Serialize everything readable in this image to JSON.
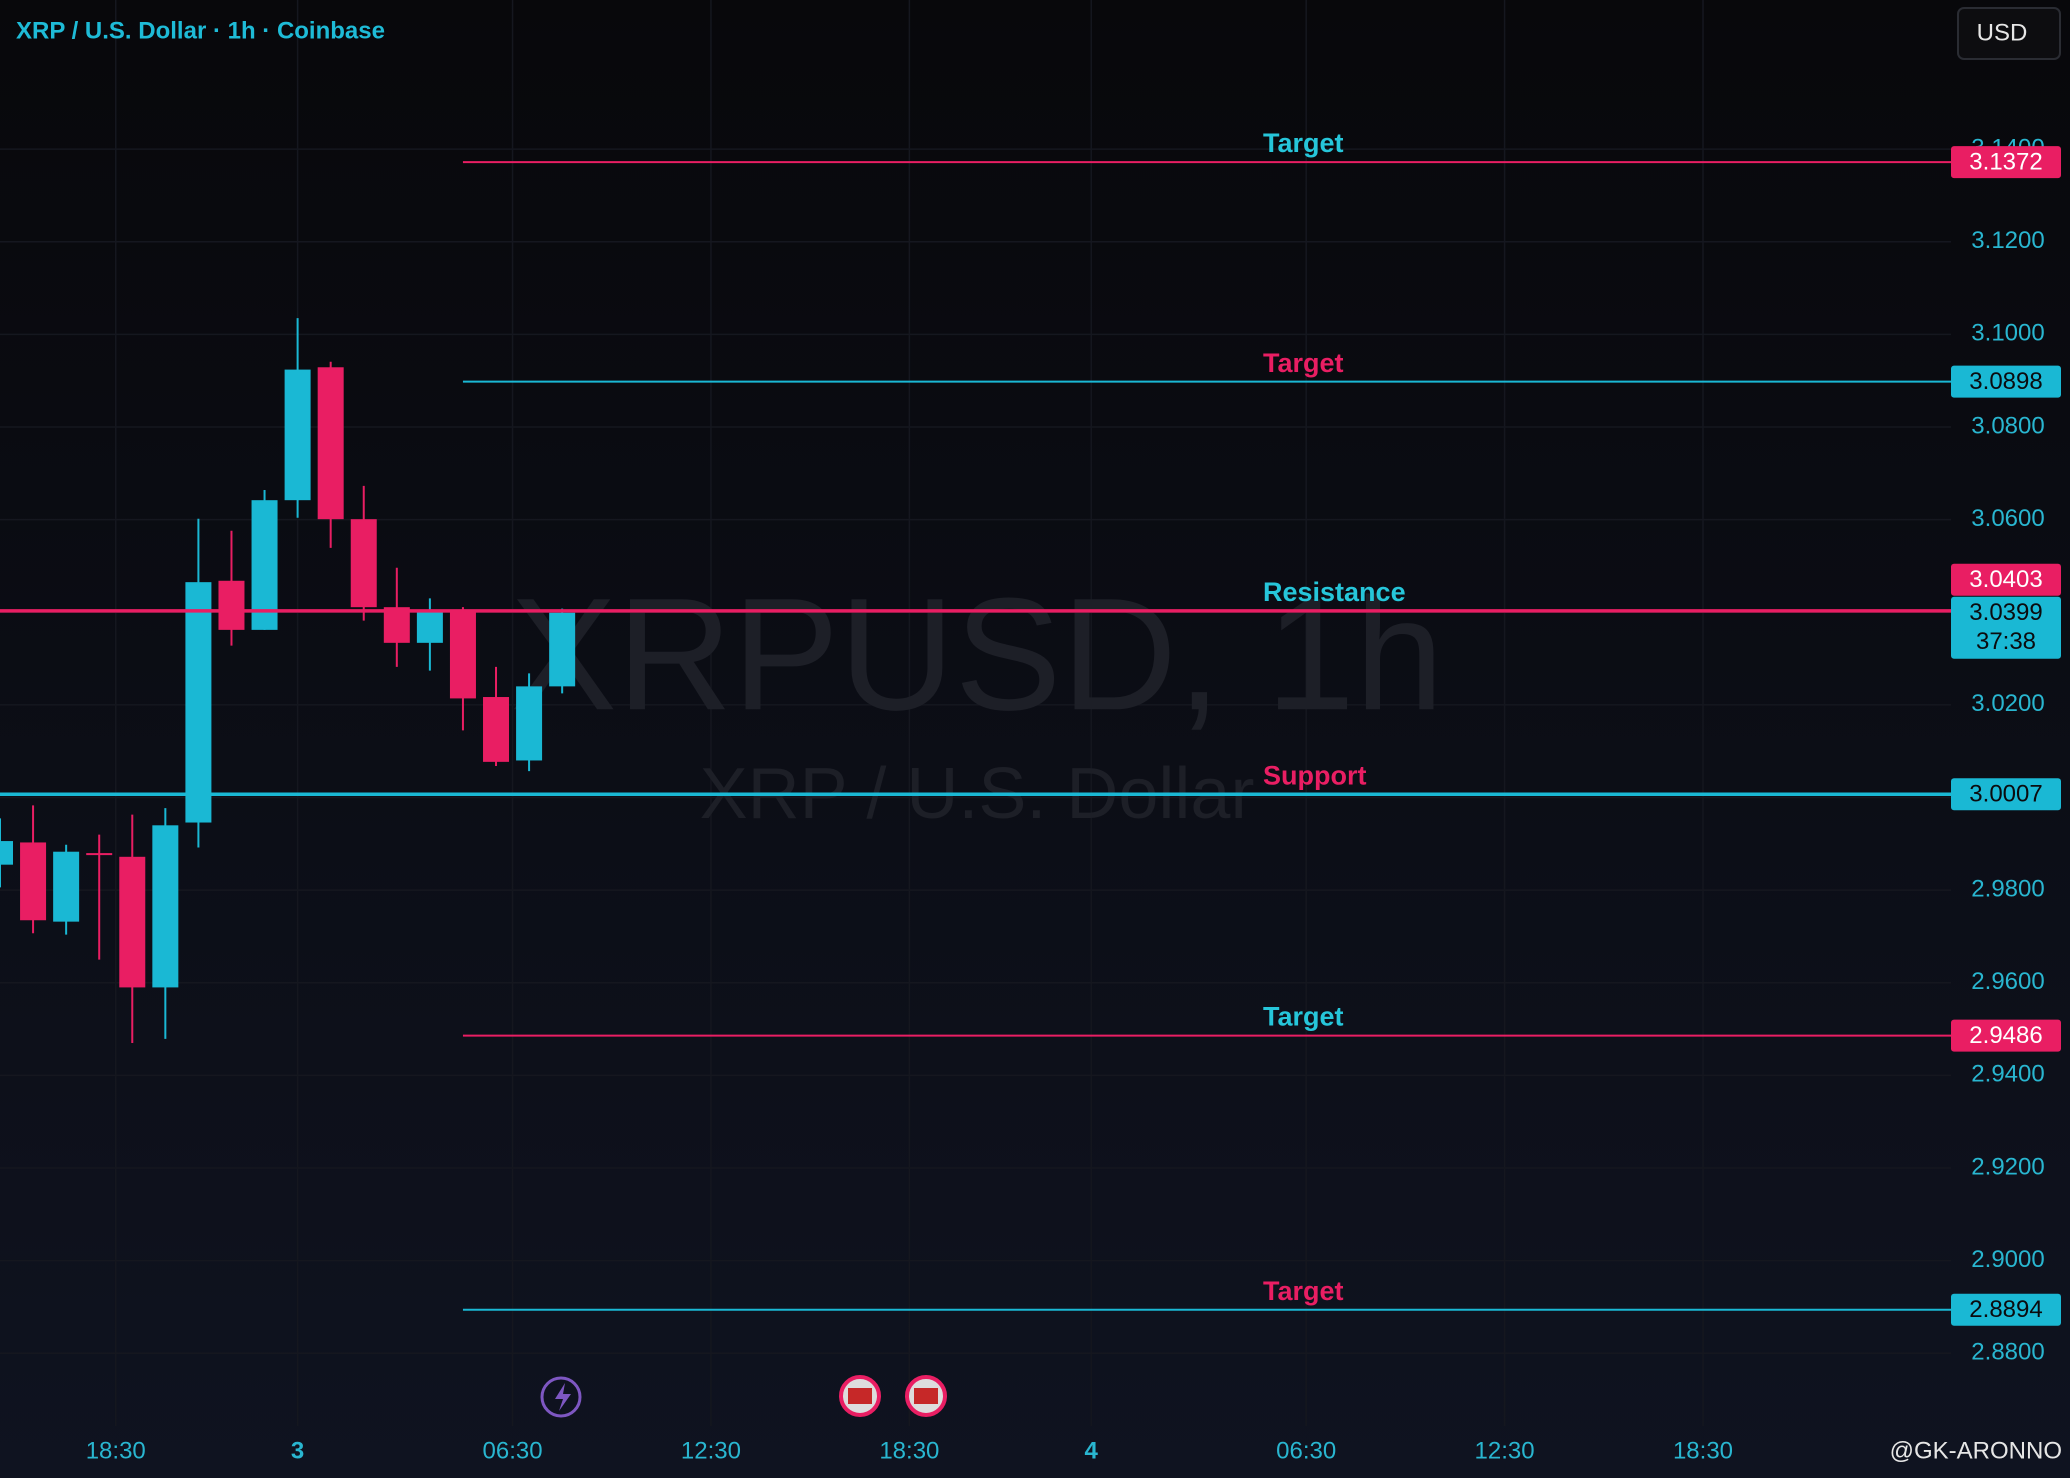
{
  "header": {
    "title": "XRP / U.S. Dollar · 1h · Coinbase",
    "currency_button": "USD",
    "watermark": "XRPUSD, 1h",
    "watermark_subtitle": "XRP / U.S. Dollar",
    "author": "@GK-ARONNO"
  },
  "chart_data": {
    "type": "candlestick",
    "x": [
      -9,
      -8,
      -7,
      -6,
      -5,
      -4,
      -3,
      -2,
      -1,
      0,
      1,
      2,
      3,
      4,
      5,
      6,
      7,
      8
    ],
    "open": [
      2.9855,
      2.9903,
      2.9732,
      2.988,
      2.9872,
      2.959,
      2.9946,
      3.0468,
      3.0362,
      3.0642,
      3.0929,
      3.0601,
      3.0411,
      3.0334,
      3.0405,
      3.0217,
      3.008,
      3.024
    ],
    "high": [
      2.9955,
      2.9983,
      2.9898,
      2.992,
      2.9963,
      2.9977,
      3.0602,
      3.0576,
      3.0664,
      3.1035,
      3.0941,
      3.0673,
      3.0496,
      3.043,
      3.0411,
      3.0282,
      3.0268,
      3.0408
    ],
    "low": [
      2.9806,
      2.9707,
      2.9704,
      2.965,
      2.947,
      2.9479,
      2.9892,
      3.0328,
      3.0362,
      3.0604,
      3.0539,
      3.0382,
      3.0282,
      3.0274,
      3.0145,
      3.0068,
      3.0057,
      3.0225
    ],
    "close": [
      2.9906,
      2.9735,
      2.9883,
      2.9877,
      2.959,
      2.994,
      3.0465,
      3.0362,
      3.0642,
      3.0924,
      3.0601,
      3.0411,
      3.0334,
      3.0402,
      3.0214,
      3.0077,
      3.024,
      3.0399
    ],
    "up_color": "#1ab8d4",
    "down_color": "#e91e63",
    "xlim": [
      -9,
      50
    ],
    "xticks": [
      {
        "value": -5.5,
        "label": "18:30"
      },
      {
        "value": 0,
        "label": "3"
      },
      {
        "value": 6.5,
        "label": "06:30"
      },
      {
        "value": 12.5,
        "label": "12:30"
      },
      {
        "value": 18.5,
        "label": "18:30"
      },
      {
        "value": 24,
        "label": "4"
      },
      {
        "value": 30.5,
        "label": "06:30"
      },
      {
        "value": 36.5,
        "label": "12:30"
      },
      {
        "value": 42.5,
        "label": "18:30"
      }
    ],
    "ylim": [
      2.8643,
      3.1722
    ],
    "yticks": [
      {
        "value": 3.14,
        "label": "3.1400"
      },
      {
        "value": 3.12,
        "label": "3.1200"
      },
      {
        "value": 3.1,
        "label": "3.1000"
      },
      {
        "value": 3.08,
        "label": "3.0800"
      },
      {
        "value": 3.06,
        "label": "3.0600"
      },
      {
        "value": 3.04,
        "label": "3.0400"
      },
      {
        "value": 3.02,
        "label": "3.0200"
      },
      {
        "value": 3,
        "label": "3.0000"
      },
      {
        "value": 2.98,
        "label": "2.9800"
      },
      {
        "value": 2.96,
        "label": "2.9600"
      },
      {
        "value": 2.94,
        "label": "2.9400"
      },
      {
        "value": 2.92,
        "label": "2.9200"
      },
      {
        "value": 2.9,
        "label": "2.9000"
      },
      {
        "value": 2.88,
        "label": "2.8800"
      }
    ],
    "grid": true,
    "levels": [
      {
        "label": "Target",
        "value": 3.1372,
        "color": "#e91e63",
        "label_color": "#26c6da",
        "x_start": 5
      },
      {
        "label": "Target",
        "value": 3.0898,
        "color": "#1ab8d4",
        "label_color": "#e91e63",
        "x_start": 5
      },
      {
        "label": "Resistance",
        "value": 3.0403,
        "color": "#e91e63",
        "label_color": "#26c6da"
      },
      {
        "label": "Support",
        "value": 3.0007,
        "color": "#1ab8d4",
        "label_color": "#e91e63"
      },
      {
        "label": "Target",
        "value": 2.9486,
        "color": "#e91e63",
        "label_color": "#26c6da",
        "x_start": 5
      },
      {
        "label": "Target",
        "value": 2.8894,
        "color": "#1ab8d4",
        "label_color": "#e91e63",
        "x_start": 5
      }
    ],
    "last_price": 3.0399,
    "countdown": "37:38"
  }
}
